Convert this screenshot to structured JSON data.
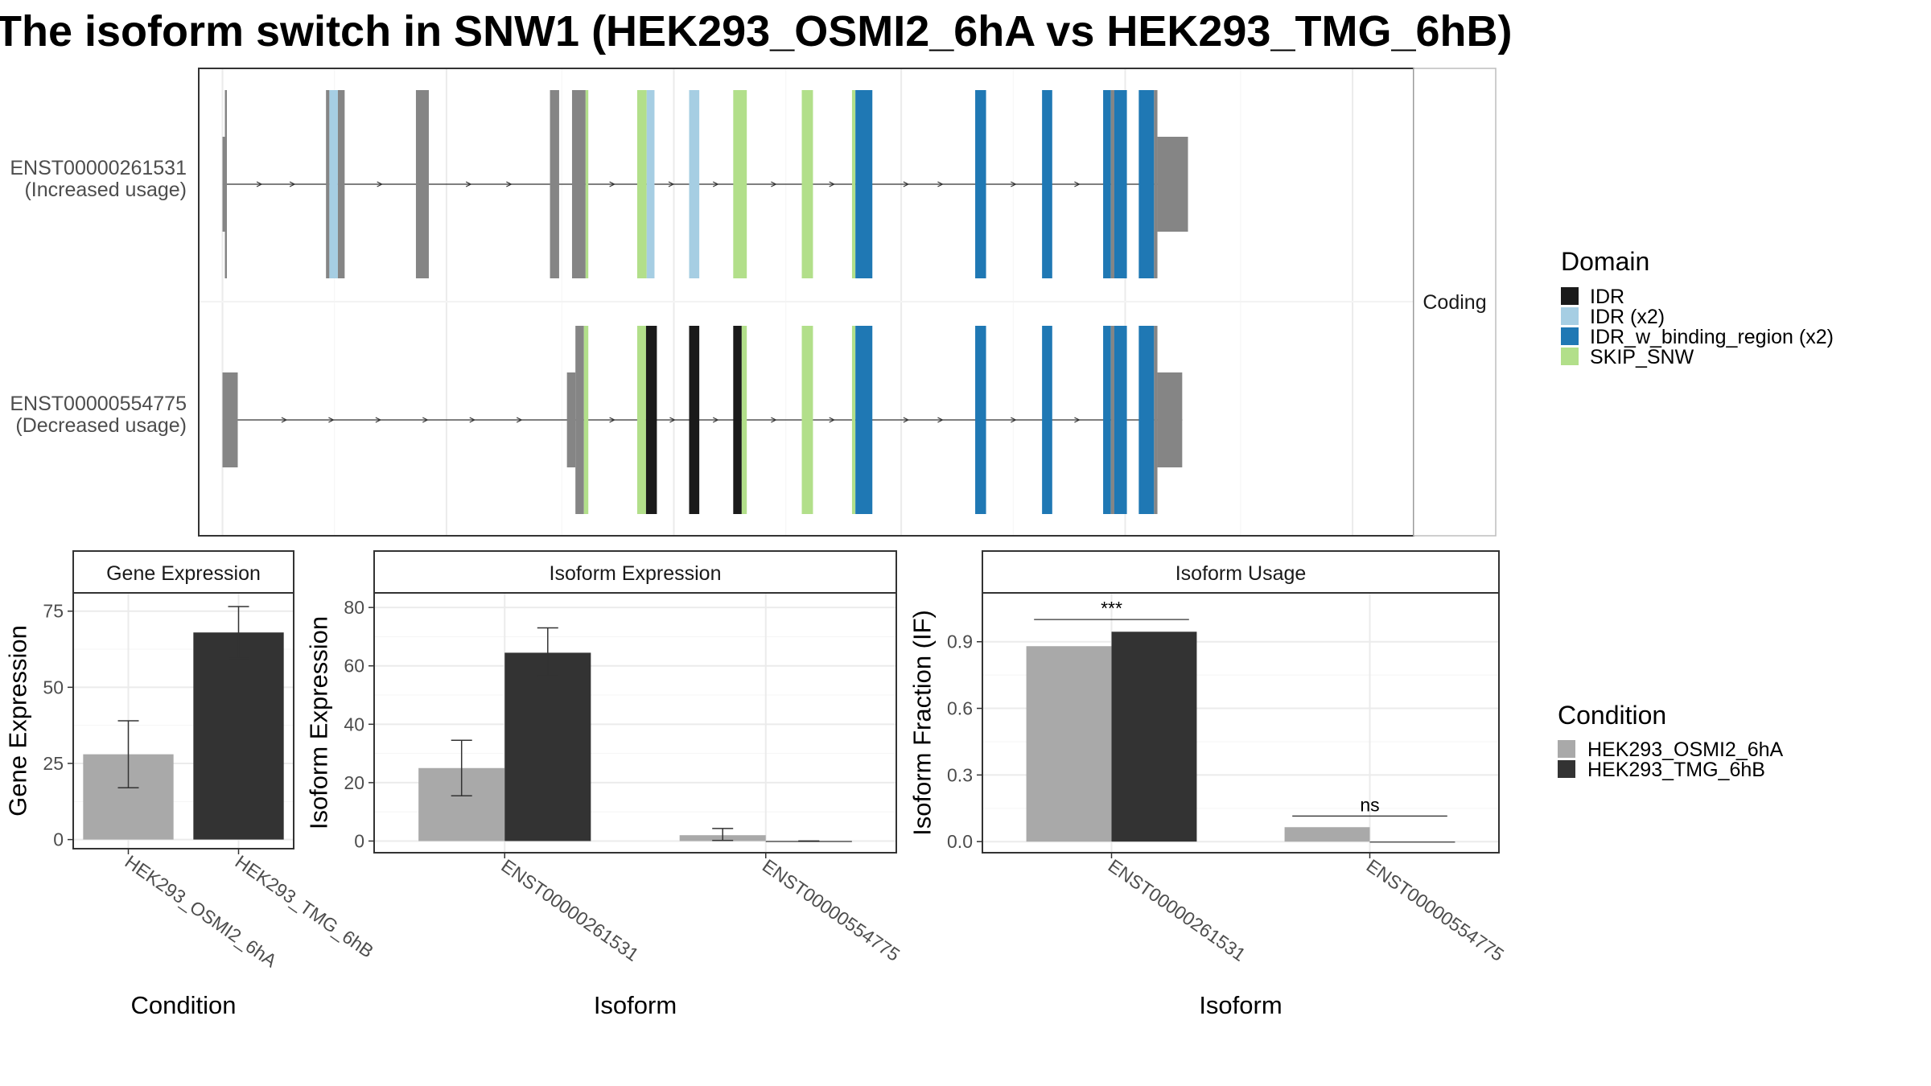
{
  "title": "The isoform switch in SNW1 (HEK293_OSMI2_6hA vs HEK293_TMG_6hB)",
  "colors": {
    "IDR": "#1a1a1a",
    "IDR (x2)": "#a6cee3",
    "IDR_w_binding_region (x2)": "#1f78b4",
    "SKIP_SNW": "#b2df8a",
    "none": "#858585",
    "condA": "#a9a9a9",
    "condB": "#333333"
  },
  "structure": {
    "strip_label": "Coding",
    "isoforms": [
      {
        "id": "ENST00000261531",
        "label": "(Increased usage)",
        "exons": [
          {
            "pos": [
              67.0,
              67.7
            ],
            "h": "utr",
            "d": "none"
          },
          {
            "pos": [
              67.7,
              68.3
            ],
            "h": "full",
            "d": "none"
          },
          {
            "pos": [
              97.5,
              98.5
            ],
            "h": "full",
            "d": "none"
          },
          {
            "pos": [
              98.5,
              101.0
            ],
            "h": "full",
            "d": "IDR (x2)"
          },
          {
            "pos": [
              101.0,
              103.0
            ],
            "h": "full",
            "d": "none"
          },
          {
            "pos": [
              124.0,
              127.8
            ],
            "h": "full",
            "d": "none"
          },
          {
            "pos": [
              163.5,
              166.2
            ],
            "h": "full",
            "d": "none"
          },
          {
            "pos": [
              170.0,
              174.0
            ],
            "h": "full",
            "d": "none"
          },
          {
            "pos": [
              174.0,
              174.8
            ],
            "h": "full",
            "d": "SKIP_SNW"
          },
          {
            "pos": [
              189.2,
              192.0
            ],
            "h": "full",
            "d": "SKIP_SNW"
          },
          {
            "pos": [
              192.0,
              194.3
            ],
            "h": "full",
            "d": "IDR (x2)"
          },
          {
            "pos": [
              204.5,
              207.5
            ],
            "h": "full",
            "d": "IDR (x2)"
          },
          {
            "pos": [
              217.5,
              221.5
            ],
            "h": "full",
            "d": "SKIP_SNW"
          },
          {
            "pos": [
              237.7,
              241.0
            ],
            "h": "full",
            "d": "SKIP_SNW"
          },
          {
            "pos": [
              252.5,
              253.5
            ],
            "h": "full",
            "d": "SKIP_SNW"
          },
          {
            "pos": [
              253.5,
              258.5
            ],
            "h": "full",
            "d": "IDR_w_binding_region (x2)"
          },
          {
            "pos": [
              288.8,
              292.0
            ],
            "h": "full",
            "d": "IDR_w_binding_region (x2)"
          },
          {
            "pos": [
              308.5,
              311.5
            ],
            "h": "full",
            "d": "IDR_w_binding_region (x2)"
          },
          {
            "pos": [
              326.5,
              328.8
            ],
            "h": "full",
            "d": "IDR_w_binding_region (x2)"
          },
          {
            "pos": [
              328.8,
              329.8
            ],
            "h": "full",
            "d": "none"
          },
          {
            "pos": [
              329.8,
              333.5
            ],
            "h": "full",
            "d": "IDR_w_binding_region (x2)"
          },
          {
            "pos": [
              337.0,
              341.5
            ],
            "h": "full",
            "d": "IDR_w_binding_region (x2)"
          },
          {
            "pos": [
              341.5,
              342.5
            ],
            "h": "full",
            "d": "none"
          },
          {
            "pos": [
              342.5,
              351.5
            ],
            "h": "utr",
            "d": "none"
          }
        ]
      },
      {
        "id": "ENST00000554775",
        "label": "(Decreased usage)",
        "exons": [
          {
            "pos": [
              67.0,
              71.5
            ],
            "h": "utr",
            "d": "none"
          },
          {
            "pos": [
              168.5,
              171.0
            ],
            "h": "utr",
            "d": "none"
          },
          {
            "pos": [
              171.0,
              173.5
            ],
            "h": "full",
            "d": "none"
          },
          {
            "pos": [
              173.5,
              174.8
            ],
            "h": "full",
            "d": "SKIP_SNW"
          },
          {
            "pos": [
              189.2,
              191.8
            ],
            "h": "full",
            "d": "SKIP_SNW"
          },
          {
            "pos": [
              191.8,
              195.0
            ],
            "h": "full",
            "d": "IDR"
          },
          {
            "pos": [
              204.5,
              207.5
            ],
            "h": "full",
            "d": "IDR"
          },
          {
            "pos": [
              217.5,
              220.0
            ],
            "h": "full",
            "d": "IDR"
          },
          {
            "pos": [
              220.0,
              221.5
            ],
            "h": "full",
            "d": "SKIP_SNW"
          },
          {
            "pos": [
              237.7,
              241.0
            ],
            "h": "full",
            "d": "SKIP_SNW"
          },
          {
            "pos": [
              252.5,
              253.5
            ],
            "h": "full",
            "d": "SKIP_SNW"
          },
          {
            "pos": [
              253.5,
              258.5
            ],
            "h": "full",
            "d": "IDR_w_binding_region (x2)"
          },
          {
            "pos": [
              288.8,
              292.0
            ],
            "h": "full",
            "d": "IDR_w_binding_region (x2)"
          },
          {
            "pos": [
              308.5,
              311.5
            ],
            "h": "full",
            "d": "IDR_w_binding_region (x2)"
          },
          {
            "pos": [
              326.5,
              328.8
            ],
            "h": "full",
            "d": "IDR_w_binding_region (x2)"
          },
          {
            "pos": [
              328.8,
              329.8
            ],
            "h": "full",
            "d": "none"
          },
          {
            "pos": [
              329.8,
              333.5
            ],
            "h": "full",
            "d": "IDR_w_binding_region (x2)"
          },
          {
            "pos": [
              337.0,
              341.5
            ],
            "h": "full",
            "d": "IDR_w_binding_region (x2)"
          },
          {
            "pos": [
              341.5,
              342.5
            ],
            "h": "full",
            "d": "none"
          },
          {
            "pos": [
              342.5,
              349.8
            ],
            "h": "utr",
            "d": "none"
          }
        ]
      }
    ]
  },
  "domain_legend": {
    "title": "Domain",
    "items": [
      "IDR",
      "IDR (x2)",
      "IDR_w_binding_region (x2)",
      "SKIP_SNW"
    ]
  },
  "condition_legend": {
    "title": "Condition",
    "items": [
      "HEK293_OSMI2_6hA",
      "HEK293_TMG_6hB"
    ]
  },
  "chart_data": [
    {
      "type": "bar",
      "title": "Gene Expression",
      "xlabel": "Condition",
      "ylabel": "Gene Expression",
      "ylim": [
        -3,
        81
      ],
      "yticks": [
        0,
        25,
        50,
        75
      ],
      "categories": [
        "HEK293_OSMI2_6hA",
        "HEK293_TMG_6hB"
      ],
      "series": [
        {
          "name": "HEK293_OSMI2_6hA",
          "values": [
            28,
            null
          ],
          "error": [
            [
              17,
              39
            ],
            null
          ]
        },
        {
          "name": "HEK293_TMG_6hB",
          "values": [
            null,
            68
          ],
          "error": [
            null,
            [
              59.5,
              76.5
            ]
          ]
        }
      ]
    },
    {
      "type": "bar",
      "title": "Isoform Expression",
      "xlabel": "Isoform",
      "ylabel": "Isoform Expression",
      "ylim": [
        -4,
        85
      ],
      "yticks": [
        0,
        20,
        40,
        60,
        80
      ],
      "categories": [
        "ENST00000261531",
        "ENST00000554775"
      ],
      "series": [
        {
          "name": "HEK293_OSMI2_6hA",
          "values": [
            25,
            2
          ],
          "error": [
            [
              15.5,
              34.5
            ],
            [
              0.2,
              4.3
            ]
          ]
        },
        {
          "name": "HEK293_TMG_6hB",
          "values": [
            64.5,
            0
          ],
          "error": [
            [
              56.5,
              73
            ],
            [
              0,
              0
            ]
          ]
        }
      ]
    },
    {
      "type": "bar",
      "title": "Isoform Usage",
      "xlabel": "Isoform",
      "ylabel": "Isoform Fraction (IF)",
      "ylim": [
        -0.05,
        1.12
      ],
      "yticks": [
        "0.0",
        "0.3",
        "0.6",
        "0.9"
      ],
      "categories": [
        "ENST00000261531",
        "ENST00000554775"
      ],
      "series": [
        {
          "name": "HEK293_OSMI2_6hA",
          "values": [
            0.88,
            0.065
          ]
        },
        {
          "name": "HEK293_TMG_6hB",
          "values": [
            0.945,
            0
          ]
        }
      ],
      "significance": [
        {
          "category": "ENST00000261531",
          "label": "***",
          "y": 1.0
        },
        {
          "category": "ENST00000554775",
          "label": "ns",
          "y": 0.115
        }
      ]
    }
  ]
}
